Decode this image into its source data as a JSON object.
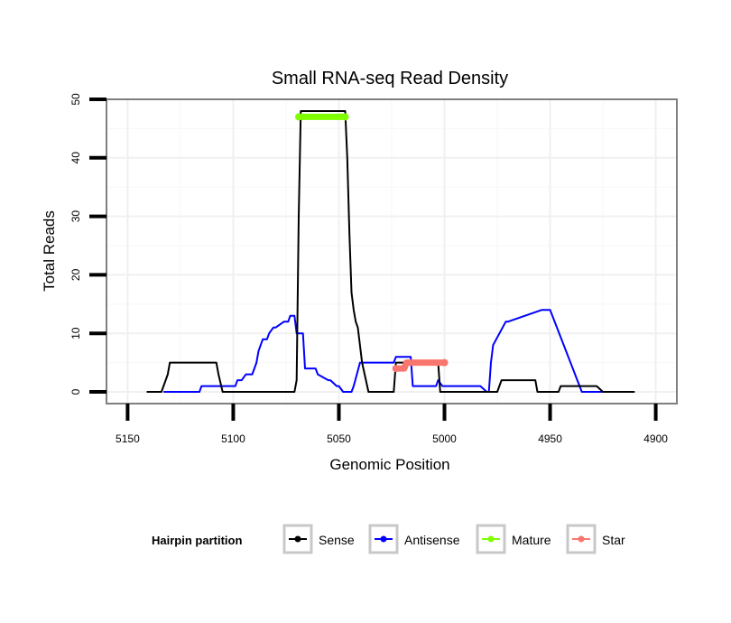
{
  "chart_data": {
    "type": "line",
    "title": "Small RNA-seq Read Density",
    "xlabel": "Genomic Position",
    "ylabel": "Total Reads",
    "xlim": [
      5160,
      4890
    ],
    "x_reversed": true,
    "ylim": [
      -2,
      50
    ],
    "xticks": [
      5150,
      5100,
      5050,
      5000,
      4950,
      4900
    ],
    "yticks": [
      0,
      10,
      20,
      30,
      40,
      50
    ],
    "grid": true,
    "legend": {
      "title": "Hairpin partition",
      "position": "bottom",
      "entries": [
        "Sense",
        "Antisense",
        "Mature",
        "Star"
      ]
    },
    "colors": {
      "Sense": "#000000",
      "Antisense": "#0000ff",
      "Mature": "#7fff00",
      "Star": "#f8766d"
    },
    "series": [
      {
        "name": "Sense",
        "x": [
          5141,
          5134,
          5131,
          5130,
          5108,
          5107,
          5105,
          5071,
          5070,
          5069,
          5068,
          5047,
          5046,
          5045,
          5044,
          5043,
          5042,
          5041,
          5039,
          5036,
          5024,
          5023,
          5021,
          5003,
          5002,
          4975,
          4973,
          4967,
          4957,
          4956,
          4947,
          4946,
          4945,
          4943,
          4941,
          4928,
          4925,
          4910
        ],
        "values": [
          0,
          0,
          3,
          5,
          5,
          3,
          0,
          0,
          2,
          30,
          48,
          48,
          40,
          27,
          17,
          14,
          12,
          11,
          5,
          0,
          0,
          5,
          5,
          5,
          0,
          0,
          2,
          2,
          2,
          0,
          0,
          0,
          1,
          1,
          1,
          1,
          0,
          0
        ]
      },
      {
        "name": "Antisense",
        "x": [
          5133,
          5116,
          5115,
          5099,
          5098,
          5096,
          5094,
          5091,
          5089,
          5088,
          5086,
          5084,
          5083,
          5081,
          5080,
          5076,
          5074,
          5073,
          5071,
          5070,
          5069,
          5067,
          5066,
          5061,
          5060,
          5055,
          5054,
          5051,
          5050,
          5048,
          5047,
          5044,
          5043,
          5040,
          5038,
          5024,
          5023,
          5022,
          5021,
          5016,
          5015,
          5004,
          5003,
          5001,
          5000,
          4983,
          4980,
          4979,
          4978,
          4977,
          4971,
          4970,
          4954,
          4953,
          4951,
          4950,
          4935,
          4934,
          4933,
          4932,
          4931,
          4910
        ],
        "values": [
          0,
          0,
          1,
          1,
          2,
          2,
          3,
          3,
          5,
          7,
          9,
          9,
          10,
          11,
          11,
          12,
          12,
          13,
          13,
          10,
          10,
          10,
          4,
          4,
          3,
          2,
          2,
          1,
          1,
          0,
          0,
          0,
          1,
          5,
          5,
          5,
          6,
          6,
          6,
          6,
          1,
          1,
          2,
          1,
          1,
          1,
          0,
          0,
          5,
          8,
          12,
          12,
          14,
          14,
          14,
          14,
          0,
          0,
          0,
          0,
          0,
          0
        ]
      },
      {
        "name": "Mature",
        "x": [
          5069,
          5047
        ],
        "values": [
          47,
          47
        ]
      },
      {
        "name": "Star",
        "x": [
          5023,
          5019,
          5018,
          5000
        ],
        "values": [
          4,
          4,
          5,
          5
        ]
      }
    ]
  }
}
